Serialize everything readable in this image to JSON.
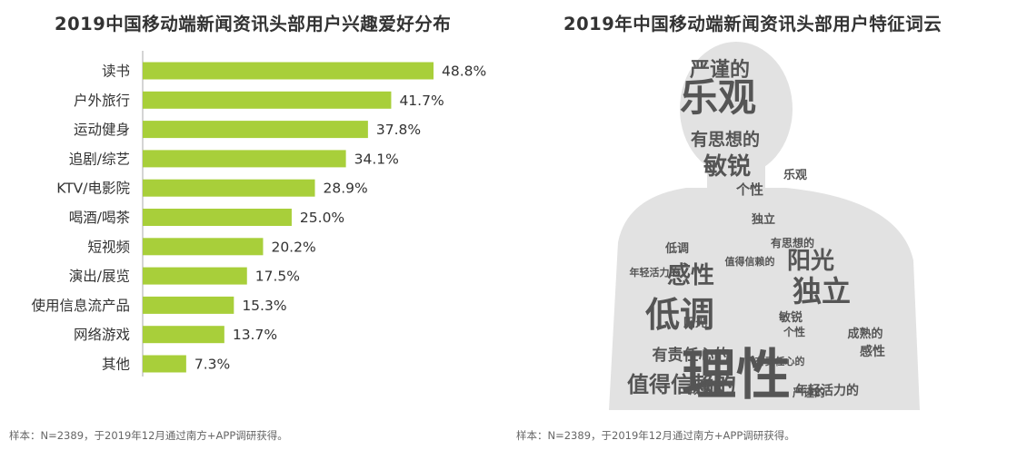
{
  "left": {
    "title": "2019中国移动端新闻资讯头部用户兴趣爱好分布",
    "note": "样本：N=2389，于2019年12月通过南方+APP调研获得。"
  },
  "right": {
    "title": "2019年中国移动端新闻资讯头部用户特征词云",
    "note": "样本：N=2389，于2019年12月通过南方+APP调研获得。"
  },
  "chart_data": {
    "type": "bar",
    "orientation": "horizontal",
    "title": "2019中国移动端新闻资讯头部用户兴趣爱好分布",
    "categories": [
      "读书",
      "户外旅行",
      "运动健身",
      "追剧/综艺",
      "KTV/电影院",
      "喝酒/喝茶",
      "短视频",
      "演出/展览",
      "使用信息流产品",
      "网络游戏",
      "其他"
    ],
    "values": [
      48.8,
      41.7,
      37.8,
      34.1,
      28.9,
      25.0,
      20.2,
      17.5,
      15.3,
      13.7,
      7.3
    ],
    "value_labels": [
      "48.8%",
      "41.7%",
      "37.8%",
      "34.1%",
      "28.9%",
      "25.0%",
      "20.2%",
      "17.5%",
      "15.3%",
      "13.7%",
      "7.3%"
    ],
    "xlim": [
      0,
      50
    ],
    "bar_color": "#a8cf3a",
    "grid": false
  },
  "wordcloud": {
    "shape": "person-silhouette",
    "text_color": "#555555",
    "background_color": "#ffffff",
    "words": [
      {
        "text": "理性",
        "weight": 10
      },
      {
        "text": "乐观",
        "weight": 7
      },
      {
        "text": "低调",
        "weight": 6
      },
      {
        "text": "独立",
        "weight": 5
      },
      {
        "text": "感性",
        "weight": 4
      },
      {
        "text": "阳光",
        "weight": 4
      },
      {
        "text": "敏锐",
        "weight": 4
      },
      {
        "text": "值得信赖的",
        "weight": 4
      },
      {
        "text": "严谨的",
        "weight": 3
      },
      {
        "text": "有思想的",
        "weight": 3
      },
      {
        "text": "有责任心的",
        "weight": 3
      },
      {
        "text": "成熟的",
        "weight": 2
      },
      {
        "text": "个性",
        "weight": 2
      },
      {
        "text": "年轻活力的",
        "weight": 2
      },
      {
        "text": "乐观",
        "weight": 2
      },
      {
        "text": "低调",
        "weight": 2
      },
      {
        "text": "独立",
        "weight": 2
      },
      {
        "text": "感性",
        "weight": 2
      },
      {
        "text": "阳光",
        "weight": 2
      },
      {
        "text": "敏锐",
        "weight": 2
      },
      {
        "text": "成熟的",
        "weight": 1
      },
      {
        "text": "严谨的",
        "weight": 1
      },
      {
        "text": "有思想的",
        "weight": 1
      },
      {
        "text": "个性",
        "weight": 1
      },
      {
        "text": "值得信赖的",
        "weight": 1
      },
      {
        "text": "有责任心的",
        "weight": 1
      },
      {
        "text": "年轻活力的",
        "weight": 1
      }
    ]
  }
}
